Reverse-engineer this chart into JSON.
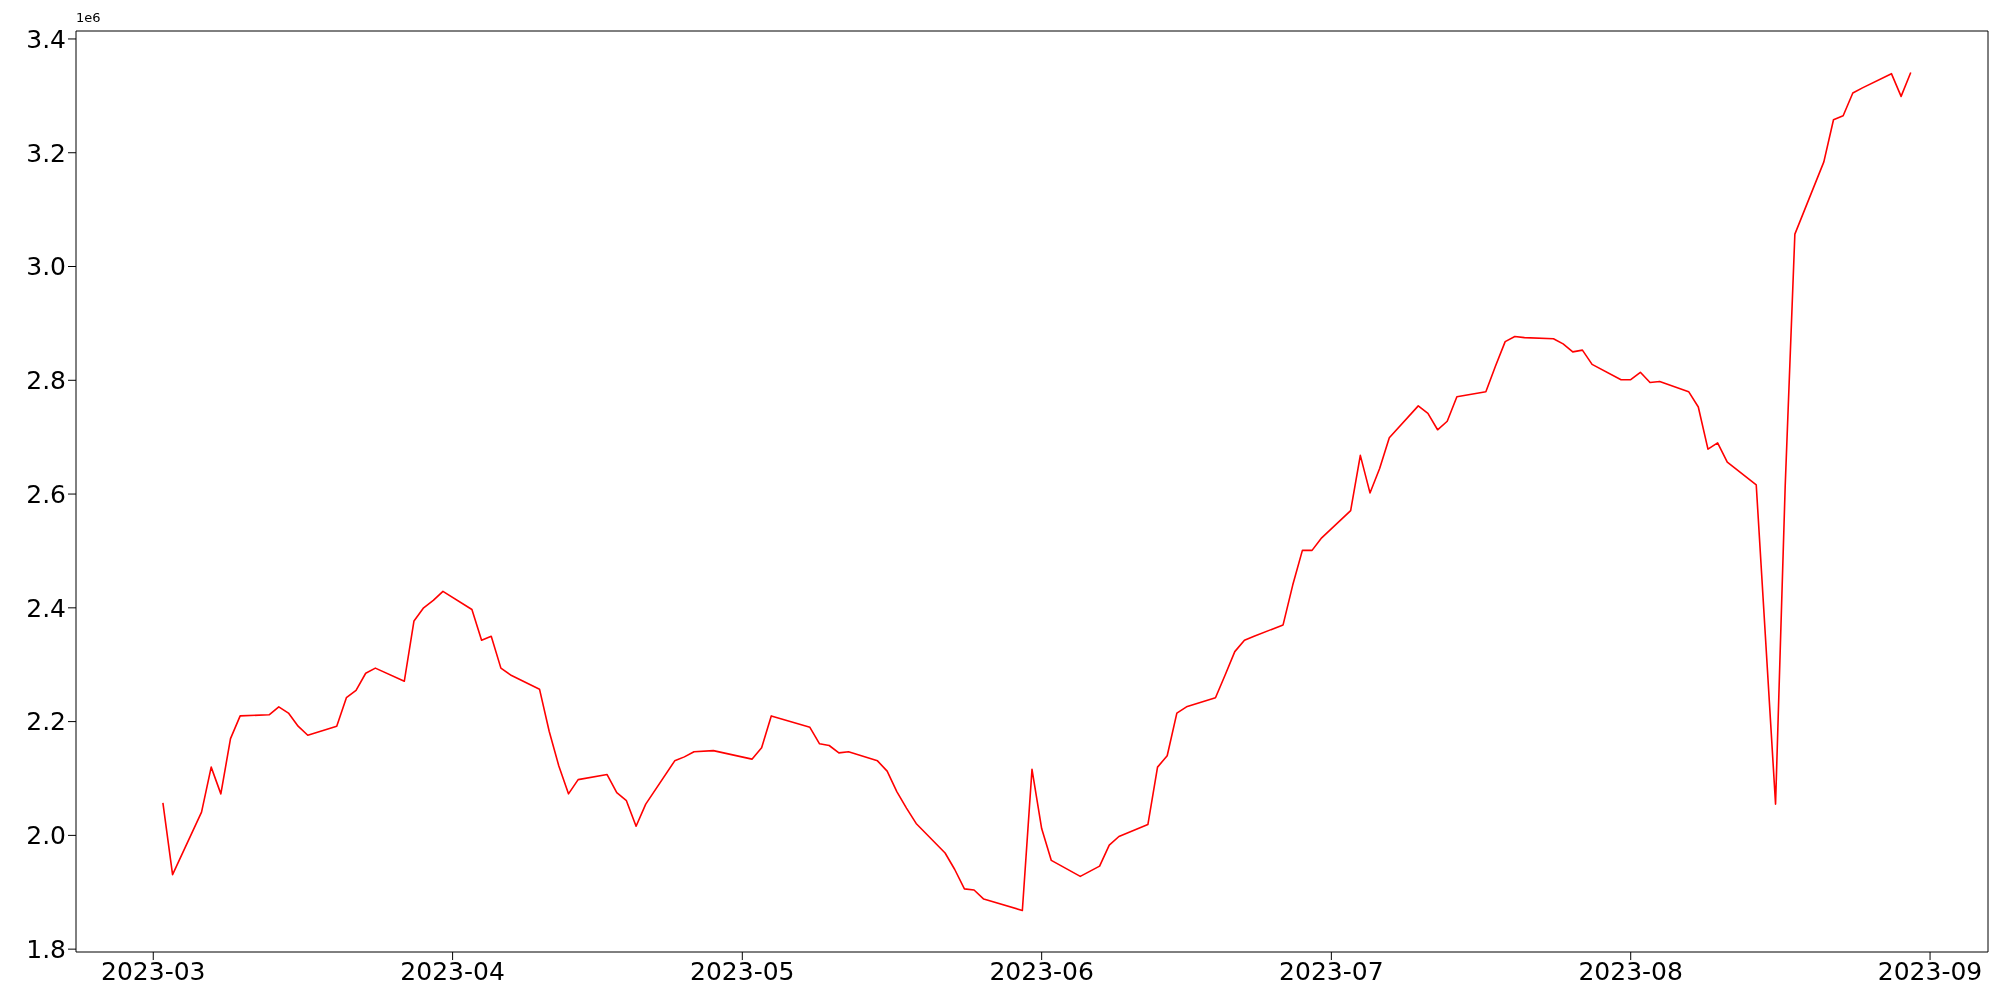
{
  "chart_data": {
    "type": "line",
    "annotations": [
      "1e6"
    ],
    "x": [
      "2023-03-02",
      "2023-03-03",
      "2023-03-06",
      "2023-03-07",
      "2023-03-08",
      "2023-03-09",
      "2023-03-10",
      "2023-03-13",
      "2023-03-14",
      "2023-03-15",
      "2023-03-16",
      "2023-03-17",
      "2023-03-20",
      "2023-03-21",
      "2023-03-22",
      "2023-03-23",
      "2023-03-24",
      "2023-03-27",
      "2023-03-28",
      "2023-03-29",
      "2023-03-30",
      "2023-03-31",
      "2023-04-03",
      "2023-04-04",
      "2023-04-05",
      "2023-04-06",
      "2023-04-07",
      "2023-04-10",
      "2023-04-11",
      "2023-04-12",
      "2023-04-13",
      "2023-04-14",
      "2023-04-17",
      "2023-04-18",
      "2023-04-19",
      "2023-04-20",
      "2023-04-21",
      "2023-04-24",
      "2023-04-25",
      "2023-04-26",
      "2023-04-28",
      "2023-05-02",
      "2023-05-03",
      "2023-05-04",
      "2023-05-08",
      "2023-05-09",
      "2023-05-10",
      "2023-05-11",
      "2023-05-12",
      "2023-05-15",
      "2023-05-16",
      "2023-05-17",
      "2023-05-18",
      "2023-05-19",
      "2023-05-22",
      "2023-05-23",
      "2023-05-24",
      "2023-05-25",
      "2023-05-26",
      "2023-05-30",
      "2023-05-31",
      "2023-06-01",
      "2023-06-02",
      "2023-06-05",
      "2023-06-07",
      "2023-06-08",
      "2023-06-09",
      "2023-06-12",
      "2023-06-13",
      "2023-06-14",
      "2023-06-15",
      "2023-06-16",
      "2023-06-19",
      "2023-06-20",
      "2023-06-21",
      "2023-06-22",
      "2023-06-23",
      "2023-06-26",
      "2023-06-27",
      "2023-06-28",
      "2023-06-29",
      "2023-06-30",
      "2023-07-03",
      "2023-07-04",
      "2023-07-05",
      "2023-07-06",
      "2023-07-07",
      "2023-07-10",
      "2023-07-11",
      "2023-07-12",
      "2023-07-13",
      "2023-07-14",
      "2023-07-17",
      "2023-07-18",
      "2023-07-19",
      "2023-07-20",
      "2023-07-21",
      "2023-07-24",
      "2023-07-25",
      "2023-07-26",
      "2023-07-27",
      "2023-07-28",
      "2023-07-31",
      "2023-08-01",
      "2023-08-02",
      "2023-08-03",
      "2023-08-04",
      "2023-08-07",
      "2023-08-08",
      "2023-08-09",
      "2023-08-10",
      "2023-08-11",
      "2023-08-14",
      "2023-08-16",
      "2023-08-17",
      "2023-08-18",
      "2023-08-21",
      "2023-08-22",
      "2023-08-23",
      "2023-08-24",
      "2023-08-25",
      "2023-08-28",
      "2023-08-29",
      "2023-08-30"
    ],
    "series": [
      {
        "color": "#ff0000",
        "values": [
          2.057,
          1.931,
          2.041,
          2.12,
          2.073,
          2.17,
          2.21,
          2.212,
          2.226,
          2.215,
          2.192,
          2.176,
          2.192,
          2.242,
          2.255,
          2.285,
          2.294,
          2.271,
          2.377,
          2.4,
          2.413,
          2.429,
          2.397,
          2.343,
          2.35,
          2.294,
          2.282,
          2.257,
          2.183,
          2.122,
          2.073,
          2.098,
          2.107,
          2.075,
          2.061,
          2.016,
          2.055,
          2.131,
          2.138,
          2.147,
          2.149,
          2.134,
          2.154,
          2.21,
          2.19,
          2.161,
          2.158,
          2.145,
          2.147,
          2.131,
          2.113,
          2.077,
          2.048,
          2.021,
          1.969,
          1.94,
          1.906,
          1.904,
          1.888,
          1.868,
          2.116,
          2.012,
          1.956,
          1.928,
          1.946,
          1.983,
          1.998,
          2.019,
          2.12,
          2.14,
          2.215,
          2.226,
          2.242,
          2.282,
          2.323,
          2.343,
          2.35,
          2.37,
          2.44,
          2.501,
          2.501,
          2.523,
          2.571,
          2.668,
          2.602,
          2.645,
          2.699,
          2.755,
          2.742,
          2.713,
          2.728,
          2.771,
          2.78,
          2.825,
          2.868,
          2.877,
          2.875,
          2.873,
          2.864,
          2.85,
          2.853,
          2.828,
          2.801,
          2.801,
          2.814,
          2.796,
          2.798,
          2.78,
          2.753,
          2.679,
          2.69,
          2.656,
          2.616,
          2.055,
          2.615,
          3.057,
          3.184,
          3.258,
          3.265,
          3.305,
          3.314,
          3.339,
          3.299,
          3.341
        ]
      }
    ],
    "xlim": [
      "2023-02-21",
      "2023-09-07"
    ],
    "xticks": [
      {
        "value": "2023-03-01",
        "label": "2023-03"
      },
      {
        "value": "2023-04-01",
        "label": "2023-04"
      },
      {
        "value": "2023-05-01",
        "label": "2023-05"
      },
      {
        "value": "2023-06-01",
        "label": "2023-06"
      },
      {
        "value": "2023-07-01",
        "label": "2023-07"
      },
      {
        "value": "2023-08-01",
        "label": "2023-08"
      },
      {
        "value": "2023-09-01",
        "label": "2023-09"
      }
    ],
    "ylim": [
      1.795,
      3.414
    ],
    "yticks": [
      {
        "value": 1.8,
        "label": "1.8"
      },
      {
        "value": 2,
        "label": "2.0"
      },
      {
        "value": 2.2,
        "label": "2.2"
      },
      {
        "value": 2.4,
        "label": "2.4"
      },
      {
        "value": 2.6,
        "label": "2.6"
      },
      {
        "value": 2.8,
        "label": "2.8"
      },
      {
        "value": 3,
        "label": "3.0"
      },
      {
        "value": 3.2,
        "label": "3.2"
      },
      {
        "value": 3.4,
        "label": "3.4"
      }
    ],
    "grid": false,
    "legend": false,
    "marker": "none",
    "line_style": "solid"
  }
}
